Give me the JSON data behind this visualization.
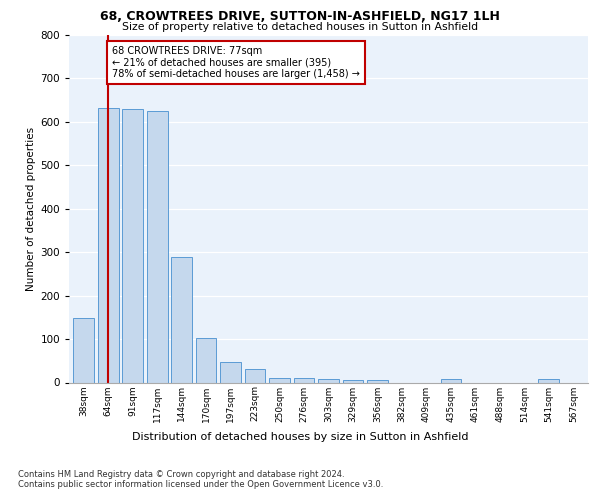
{
  "title1": "68, CROWTREES DRIVE, SUTTON-IN-ASHFIELD, NG17 1LH",
  "title2": "Size of property relative to detached houses in Sutton in Ashfield",
  "xlabel": "Distribution of detached houses by size in Sutton in Ashfield",
  "ylabel": "Number of detached properties",
  "categories": [
    "38sqm",
    "64sqm",
    "91sqm",
    "117sqm",
    "144sqm",
    "170sqm",
    "197sqm",
    "223sqm",
    "250sqm",
    "276sqm",
    "303sqm",
    "329sqm",
    "356sqm",
    "382sqm",
    "409sqm",
    "435sqm",
    "461sqm",
    "488sqm",
    "514sqm",
    "541sqm",
    "567sqm"
  ],
  "values": [
    148,
    632,
    630,
    625,
    288,
    102,
    48,
    30,
    10,
    10,
    8,
    5,
    5,
    0,
    0,
    7,
    0,
    0,
    0,
    7,
    0
  ],
  "bar_color": "#c5d8ed",
  "bar_edge_color": "#5b9bd5",
  "vline_x": 1,
  "vline_color": "#c00000",
  "annotation_text": "68 CROWTREES DRIVE: 77sqm\n← 21% of detached houses are smaller (395)\n78% of semi-detached houses are larger (1,458) →",
  "annotation_box_color": "#c00000",
  "ylim": [
    0,
    800
  ],
  "yticks": [
    0,
    100,
    200,
    300,
    400,
    500,
    600,
    700,
    800
  ],
  "footer1": "Contains HM Land Registry data © Crown copyright and database right 2024.",
  "footer2": "Contains public sector information licensed under the Open Government Licence v3.0.",
  "plot_bg_color": "#eaf2fb"
}
